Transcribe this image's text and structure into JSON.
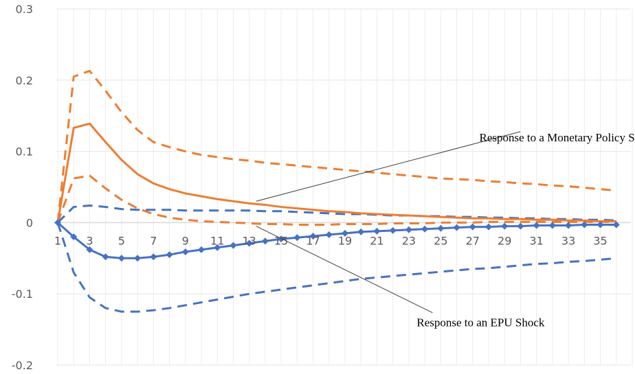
{
  "chart_data": {
    "type": "line",
    "title": "",
    "xlabel": "",
    "ylabel": "",
    "x": [
      1,
      2,
      3,
      4,
      5,
      6,
      7,
      8,
      9,
      10,
      11,
      12,
      13,
      14,
      15,
      16,
      17,
      18,
      19,
      20,
      21,
      22,
      23,
      24,
      25,
      26,
      27,
      28,
      29,
      30,
      31,
      32,
      33,
      34,
      35,
      36
    ],
    "x_tick_labels": [
      "1",
      "3",
      "5",
      "7",
      "9",
      "11",
      "13",
      "15",
      "17",
      "19",
      "21",
      "23",
      "25",
      "27",
      "29",
      "31",
      "33",
      "35"
    ],
    "ylim": [
      -0.2,
      0.3
    ],
    "y_ticks": [
      -0.2,
      -0.1,
      0,
      0.1,
      0.2,
      0.3
    ],
    "y_tick_labels": [
      "-0.2",
      "-0.1",
      "0",
      "0.1",
      "0.2",
      "0.3"
    ],
    "grid": true,
    "legend": "none",
    "series": [
      {
        "color": "#ed7d31",
        "style": "solid",
        "marker": "none",
        "values": [
          0,
          0.133,
          0.139,
          0.113,
          0.088,
          0.068,
          0.055,
          0.047,
          0.041,
          0.037,
          0.033,
          0.03,
          0.027,
          0.025,
          0.022,
          0.02,
          0.018,
          0.016,
          0.015,
          0.013,
          0.012,
          0.011,
          0.01,
          0.009,
          0.008,
          0.007,
          0.006,
          0.006,
          0.005,
          0.005,
          0.004,
          0.004,
          0.003,
          0.003,
          0.002,
          0.002
        ]
      },
      {
        "color": "#ed7d31",
        "style": "dashed",
        "marker": "none",
        "values": [
          0,
          0.205,
          0.213,
          0.185,
          0.155,
          0.13,
          0.113,
          0.106,
          0.1,
          0.095,
          0.092,
          0.089,
          0.087,
          0.084,
          0.082,
          0.08,
          0.078,
          0.076,
          0.074,
          0.072,
          0.07,
          0.068,
          0.066,
          0.064,
          0.062,
          0.061,
          0.06,
          0.058,
          0.057,
          0.055,
          0.054,
          0.052,
          0.051,
          0.049,
          0.047,
          0.045
        ]
      },
      {
        "color": "#ed7d31",
        "style": "dashed",
        "marker": "none",
        "values": [
          0,
          0.062,
          0.066,
          0.048,
          0.032,
          0.02,
          0.012,
          0.007,
          0.004,
          0.002,
          0.001,
          0.0,
          -0.001,
          -0.002,
          -0.002,
          -0.003,
          -0.003,
          -0.003,
          -0.002,
          -0.002,
          -0.002,
          -0.001,
          -0.001,
          -0.001,
          0.0,
          0.0,
          0.0,
          0.001,
          0.001,
          0.001,
          0.001,
          0.001,
          0.001,
          0.001,
          0.001,
          0.001
        ]
      },
      {
        "color": "#4472c4",
        "style": "solid",
        "marker": "diamond",
        "values": [
          0,
          -0.02,
          -0.038,
          -0.048,
          -0.05,
          -0.05,
          -0.048,
          -0.045,
          -0.041,
          -0.038,
          -0.035,
          -0.032,
          -0.029,
          -0.026,
          -0.023,
          -0.021,
          -0.019,
          -0.017,
          -0.015,
          -0.013,
          -0.012,
          -0.011,
          -0.01,
          -0.009,
          -0.008,
          -0.007,
          -0.006,
          -0.006,
          -0.005,
          -0.005,
          -0.004,
          -0.004,
          -0.004,
          -0.003,
          -0.003,
          -0.003
        ]
      },
      {
        "color": "#4472c4",
        "style": "dashed",
        "marker": "none",
        "values": [
          0,
          -0.07,
          -0.105,
          -0.12,
          -0.125,
          -0.125,
          -0.123,
          -0.12,
          -0.116,
          -0.112,
          -0.108,
          -0.104,
          -0.1,
          -0.097,
          -0.094,
          -0.091,
          -0.088,
          -0.085,
          -0.082,
          -0.079,
          -0.077,
          -0.075,
          -0.073,
          -0.071,
          -0.069,
          -0.067,
          -0.065,
          -0.064,
          -0.062,
          -0.06,
          -0.058,
          -0.057,
          -0.055,
          -0.054,
          -0.052,
          -0.05
        ]
      },
      {
        "color": "#4472c4",
        "style": "dashed",
        "marker": "none",
        "values": [
          0,
          0.022,
          0.024,
          0.022,
          0.019,
          0.018,
          0.018,
          0.018,
          0.017,
          0.017,
          0.017,
          0.017,
          0.017,
          0.016,
          0.016,
          0.015,
          0.014,
          0.013,
          0.012,
          0.012,
          0.011,
          0.01,
          0.01,
          0.009,
          0.009,
          0.008,
          0.008,
          0.007,
          0.007,
          0.006,
          0.006,
          0.005,
          0.005,
          0.004,
          0.004,
          0.003
        ]
      }
    ],
    "annotations": [
      {
        "text": "Response to a Monetary Policy Shock",
        "x": 33,
        "y": 0.12,
        "target_x": 13,
        "target_y": 0.03
      },
      {
        "text": "Response to an EPU Shock",
        "x": 27.5,
        "y": -0.14,
        "target_x": 13,
        "target_y": -0.005
      }
    ]
  }
}
